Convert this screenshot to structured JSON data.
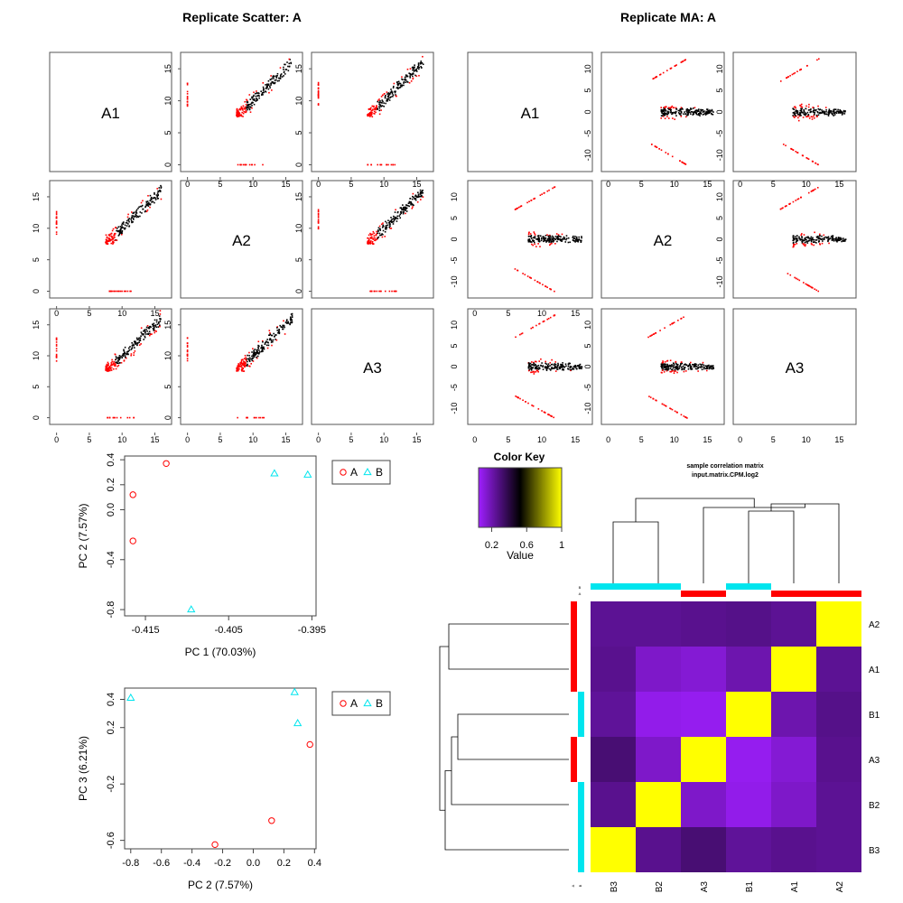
{
  "titles": {
    "scatter": "Replicate Scatter: A",
    "ma": "Replicate MA: A"
  },
  "scatter_matrix": {
    "samples": [
      "A1",
      "A2",
      "A3"
    ],
    "ticks": [
      "0",
      "5",
      "10",
      "15"
    ],
    "range": [
      -0.5,
      17
    ]
  },
  "ma_matrix": {
    "samples": [
      "A1",
      "A2",
      "A3"
    ],
    "x_ticks": [
      "0",
      "5",
      "10",
      "15"
    ],
    "y_ticks": [
      "-10",
      "-5",
      "0",
      "5",
      "10"
    ],
    "x_range": [
      -0.5,
      17
    ],
    "y_range": [
      -13,
      13
    ]
  },
  "colors": {
    "sample_a": "#ff0000",
    "sample_b": "#00e5ee",
    "points": "#000000"
  },
  "legend": {
    "a": "A",
    "b": "B"
  },
  "chart_data": [
    {
      "type": "scatter",
      "xlabel": "PC 1 (70.03%)",
      "ylabel": "PC 2 (7.57%)",
      "x_ticks": [
        "-0.415",
        "-0.405",
        "-0.395"
      ],
      "y_ticks": [
        "-0.8",
        "-0.4",
        "0.0",
        "0.2",
        "0.4"
      ],
      "xlim": [
        -0.4175,
        -0.3945
      ],
      "ylim": [
        -0.85,
        0.43
      ],
      "series": [
        {
          "name": "A",
          "marker": "circle",
          "points": [
            [
              -0.4165,
              0.12
            ],
            [
              -0.4165,
              -0.25
            ],
            [
              -0.4125,
              0.37
            ]
          ]
        },
        {
          "name": "B",
          "marker": "triangle",
          "points": [
            [
              -0.4095,
              -0.8
            ],
            [
              -0.3995,
              0.29
            ],
            [
              -0.3955,
              0.28
            ]
          ]
        }
      ]
    },
    {
      "type": "scatter",
      "xlabel": "PC 2 (7.57%)",
      "ylabel": "PC 3 (6.21%)",
      "x_ticks": [
        "-0.8",
        "-0.6",
        "-0.4",
        "-0.2",
        "0.0",
        "0.2",
        "0.4"
      ],
      "y_ticks": [
        "-0.6",
        "-0.2",
        "0.2",
        "0.4"
      ],
      "xlim": [
        -0.84,
        0.41
      ],
      "ylim": [
        -0.66,
        0.48
      ],
      "series": [
        {
          "name": "A",
          "marker": "circle",
          "points": [
            [
              0.37,
              0.08
            ],
            [
              0.12,
              -0.46
            ],
            [
              -0.25,
              -0.63
            ]
          ]
        },
        {
          "name": "B",
          "marker": "triangle",
          "points": [
            [
              -0.8,
              0.41
            ],
            [
              0.27,
              0.45
            ],
            [
              0.29,
              0.23
            ]
          ]
        }
      ]
    },
    {
      "type": "heatmap",
      "title": "sample correlation matrix",
      "subtitle": "input.matrix.CPM.log2",
      "rows": [
        "A2",
        "A1",
        "B1",
        "A3",
        "B2",
        "B3"
      ],
      "columns": [
        "B3",
        "B2",
        "A3",
        "B1",
        "A1",
        "A2"
      ],
      "row_groups": [
        "A",
        "A",
        "B",
        "A",
        "B",
        "B"
      ],
      "column_groups": [
        "B",
        "B",
        "A",
        "B",
        "A",
        "A"
      ],
      "values": [
        [
          0.25,
          0.25,
          0.26,
          0.27,
          0.25,
          1
        ],
        [
          0.26,
          0.15,
          0.13,
          0.2,
          1,
          0.25
        ],
        [
          0.24,
          0.09,
          0.08,
          1,
          0.2,
          0.27
        ],
        [
          0.31,
          0.15,
          1,
          0.08,
          0.13,
          0.26
        ],
        [
          0.26,
          1,
          0.15,
          0.09,
          0.15,
          0.25
        ],
        [
          1,
          0.26,
          0.31,
          0.24,
          0.26,
          0.25
        ]
      ],
      "color_key": {
        "title": "Color Key",
        "xlabel": "Value",
        "ticks": [
          "0.2",
          "0.6",
          "1"
        ],
        "range": [
          0.05,
          1
        ],
        "colors": [
          "#9f1fff",
          "#000000",
          "#ffff00"
        ]
      },
      "group_marks": [
        "B",
        "A"
      ]
    }
  ]
}
